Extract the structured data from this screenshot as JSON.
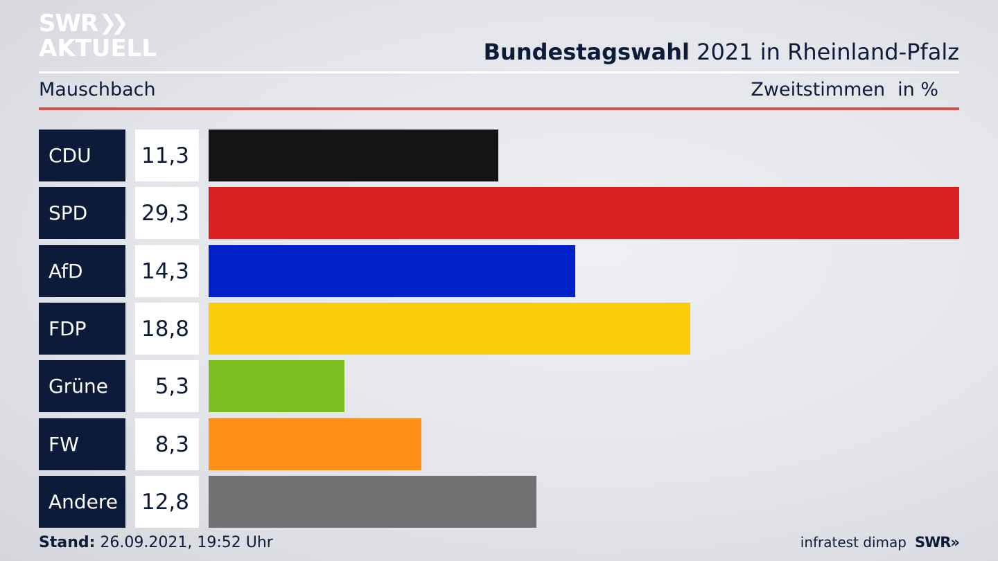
{
  "brand": {
    "logo_line1": "SWR",
    "logo_line2": "AKTUELL",
    "footer_source": "infratest dimap",
    "footer_logo": "SWR»"
  },
  "header": {
    "title_bold": "Bundestagswahl",
    "title_rest": " 2021 in Rheinland-Pfalz",
    "location": "Mauschbach",
    "vote_type": "Zweitstimmen",
    "unit": "in %"
  },
  "footer": {
    "stand_label": "Stand:",
    "stand_value": " 26.09.2021, 19:52 Uhr"
  },
  "colors": {
    "navy": "#0d1b3a",
    "rule_red": "#d9534f"
  },
  "chart_data": {
    "type": "bar",
    "orientation": "horizontal",
    "categories": [
      "CDU",
      "SPD",
      "AfD",
      "FDP",
      "Grüne",
      "FW",
      "Andere"
    ],
    "values": [
      11.3,
      29.3,
      14.3,
      18.8,
      5.3,
      8.3,
      12.8
    ],
    "value_labels": [
      "11,3",
      "29,3",
      "14,3",
      "18,8",
      "5,3",
      "8,3",
      "12,8"
    ],
    "bar_colors": [
      "#141414",
      "#d82020",
      "#0020c8",
      "#fccc0a",
      "#7abf1e",
      "#fe8f18",
      "#717173"
    ],
    "xlim": [
      0,
      29.3
    ],
    "grid": false,
    "legend": "none"
  }
}
